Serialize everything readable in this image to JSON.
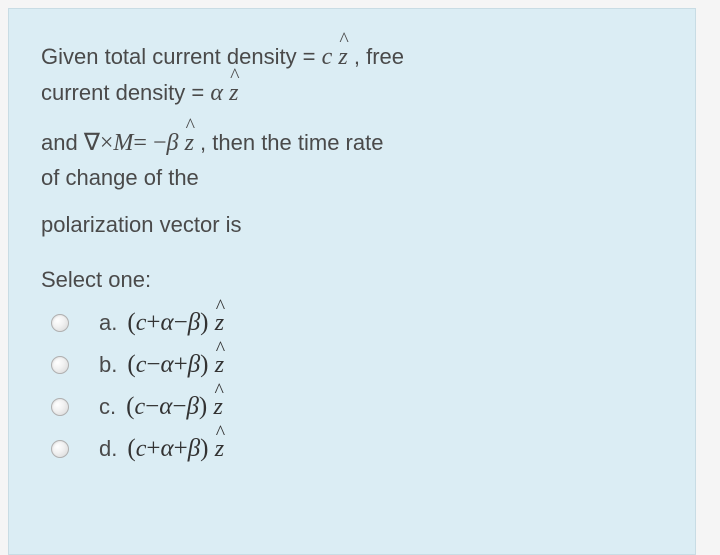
{
  "background_color": "#dbedf4",
  "text_color": "#4a4a4a",
  "question": {
    "line1_pre": "Given  total current density = ",
    "line1_c": "c",
    "line1_post": " , free",
    "line2_pre": "current density = ",
    "line2_a": "α",
    "line3_pre": "and   ",
    "line3_curl": "∇×",
    "line3_M": "M",
    "line3_eq": "= −",
    "line3_b": "β",
    "line3_post": " , then the time rate",
    "line4": "of change of the",
    "line5": "polarization vector is",
    "select": "Select one:"
  },
  "options": [
    {
      "label": "a.",
      "expr_open": "(",
      "t1": "c",
      "op1": "+",
      "t2": "α",
      "op2": "−",
      "t3": "β",
      "expr_close": ")"
    },
    {
      "label": "b.",
      "expr_open": "(",
      "t1": "c",
      "op1": "−",
      "t2": "α",
      "op2": "+",
      "t3": "β",
      "expr_close": ")"
    },
    {
      "label": "c.",
      "expr_open": "(",
      "t1": "c",
      "op1": "−",
      "t2": "α",
      "op2": "−",
      "t3": "β",
      "expr_close": ")"
    },
    {
      "label": "d.",
      "expr_open": "(",
      "t1": "c",
      "op1": "+",
      "t2": "α",
      "op2": "+",
      "t3": "β",
      "expr_close": ")"
    }
  ]
}
